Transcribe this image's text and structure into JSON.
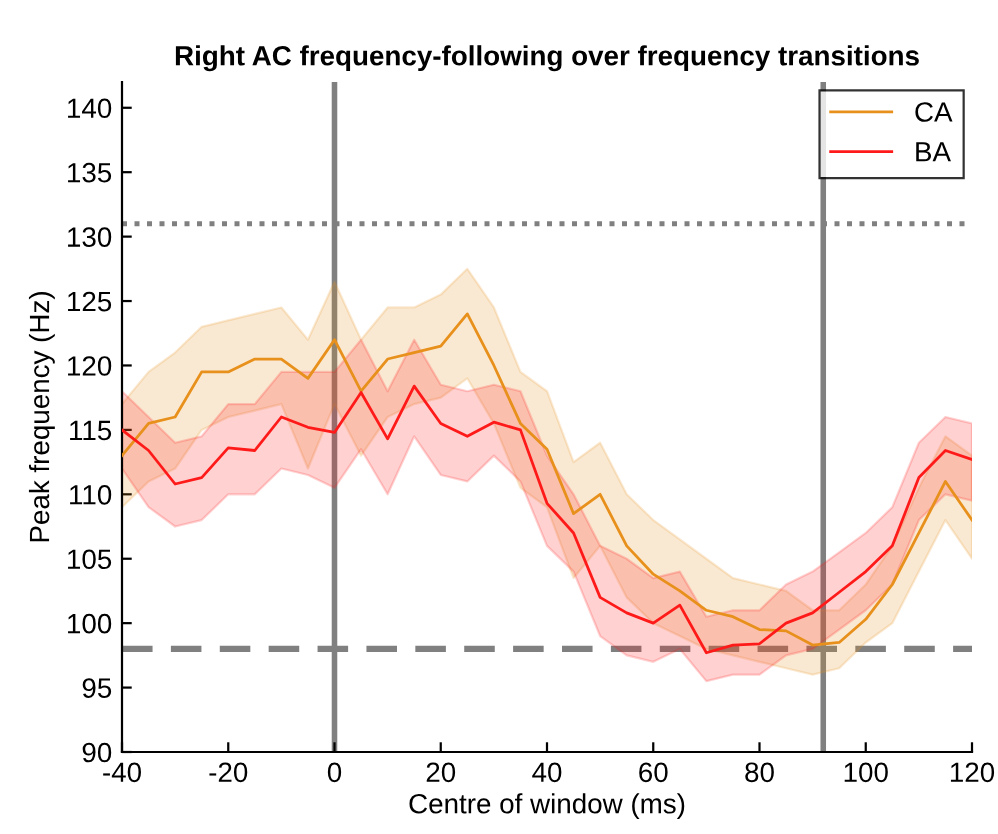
{
  "chart_data": {
    "type": "line",
    "title": "Right AC frequency-following over frequency transitions",
    "xlabel": "Centre of window (ms)",
    "ylabel": "Peak frequency (Hz)",
    "x": [
      -40,
      -35,
      -30,
      -25,
      -20,
      -15,
      -10,
      -5,
      0,
      5,
      10,
      15,
      20,
      25,
      30,
      35,
      40,
      45,
      50,
      55,
      60,
      65,
      70,
      75,
      80,
      85,
      90,
      95,
      100,
      105,
      110,
      115,
      120
    ],
    "series": [
      {
        "name": "CA",
        "color": "#e8901c",
        "values": [
          113,
          115.5,
          116,
          119.5,
          119.5,
          120.5,
          120.5,
          119,
          122,
          118,
          120.5,
          121,
          121.5,
          124,
          120,
          115.5,
          113.5,
          108.5,
          110,
          106,
          103.8,
          102.5,
          101,
          100.5,
          99.5,
          99.4,
          98.3,
          98.5,
          100.3,
          103,
          107,
          111,
          108
        ],
        "lower": [
          109,
          111,
          112,
          115,
          116,
          116.5,
          117,
          112,
          117,
          113,
          116,
          117,
          117.5,
          119,
          115.5,
          110.5,
          109,
          103.5,
          106,
          102,
          100,
          99,
          98,
          97.5,
          97,
          96.5,
          96,
          96.5,
          98.5,
          100,
          104,
          108,
          105
        ],
        "upper": [
          117,
          119.5,
          121,
          123,
          123.5,
          124,
          124.5,
          122,
          126.5,
          122,
          124.5,
          124.5,
          125.5,
          127.5,
          124.5,
          119.5,
          118,
          112.5,
          114,
          110,
          108,
          106.5,
          105,
          103.5,
          103,
          102.5,
          101,
          101,
          103,
          106,
          110.5,
          114.5,
          113
        ]
      },
      {
        "name": "BA",
        "color": "#ff1a1a",
        "values": [
          115,
          113.4,
          110.8,
          111.3,
          113.6,
          113.4,
          116,
          115.2,
          114.8,
          117.9,
          114.3,
          118.4,
          115.5,
          114.5,
          115.6,
          115,
          109.3,
          107,
          102,
          100.8,
          100,
          101.4,
          97.7,
          98.3,
          98.4,
          100,
          100.8,
          102.4,
          104,
          106,
          111.3,
          113.4,
          112.7
        ],
        "lower": [
          112,
          109,
          107.5,
          108,
          110,
          110,
          112,
          111.5,
          110.5,
          113.5,
          110,
          114.5,
          111.5,
          111,
          113,
          111,
          106,
          104,
          99,
          97.5,
          97,
          98,
          95.5,
          96,
          96,
          97.5,
          98,
          99.5,
          101,
          103,
          108,
          110,
          109.5
        ],
        "upper": [
          118,
          116,
          114,
          114.5,
          117,
          117,
          119.5,
          119.5,
          119.5,
          122,
          118,
          122,
          118.5,
          118,
          118.5,
          118,
          113,
          110,
          106,
          105,
          103.5,
          104,
          100.5,
          101,
          101,
          103,
          104,
          105.5,
          107,
          109,
          114,
          116,
          115.5
        ]
      }
    ],
    "xlim": [
      -40,
      120
    ],
    "xticks": [
      -40,
      -20,
      0,
      20,
      40,
      60,
      80,
      100,
      120
    ],
    "ylim": [
      90,
      142
    ],
    "yticks": [
      90,
      95,
      100,
      105,
      110,
      115,
      120,
      125,
      130,
      135,
      140
    ],
    "ref_lines": [
      {
        "axis": "x",
        "value": 0,
        "color": "#808080",
        "line_style": "solid"
      },
      {
        "axis": "x",
        "value": 92,
        "color": "#808080",
        "line_style": "solid"
      },
      {
        "axis": "y",
        "value": 131,
        "color": "#808080",
        "line_style": "dotted"
      },
      {
        "axis": "y",
        "value": 98,
        "color": "#808080",
        "line_style": "dashed"
      }
    ],
    "legend": "top right",
    "grid": false,
    "marker": "none",
    "line_style": "solid"
  }
}
